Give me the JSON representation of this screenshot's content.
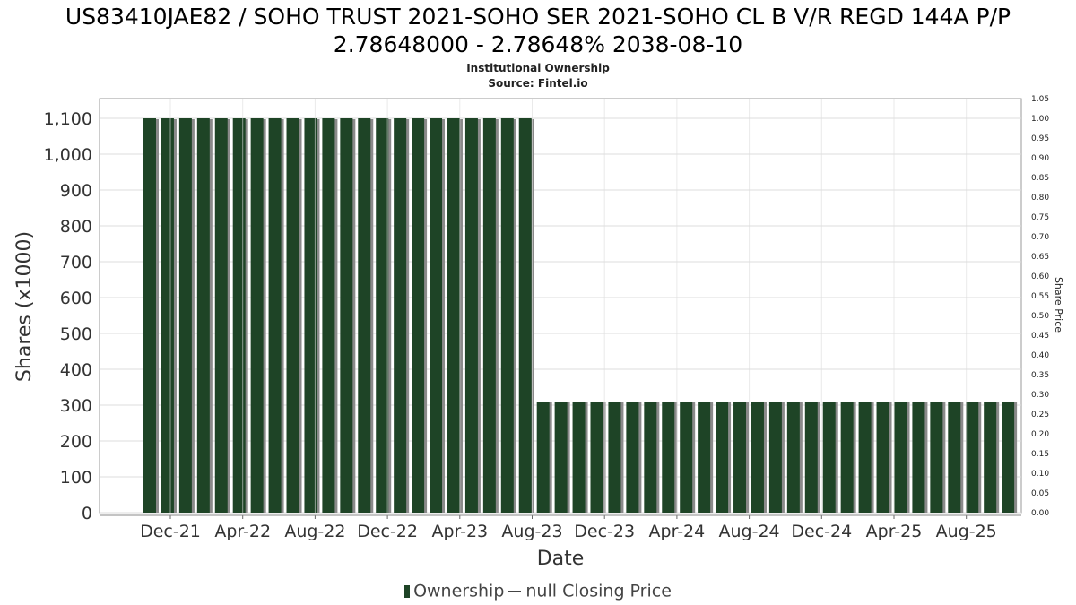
{
  "header": {
    "title_line1": "US83410JAE82 / SOHO TRUST 2021-SOHO SER 2021-SOHO CL B V/R REGD 144A P/P",
    "title_line2": "2.78648000 - 2.78648% 2038-08-10",
    "subtitle": "Institutional Ownership",
    "source": "Source: Fintel.io"
  },
  "legend": {
    "ownership": "Ownership",
    "price": "null Closing Price"
  },
  "colors": {
    "bar": "#1e4426",
    "bar_shadow": "#8a8a8a",
    "grid": "#dddddd",
    "axis_text": "#333333"
  },
  "chart_data": {
    "type": "bar",
    "title": "US83410JAE82 / SOHO TRUST 2021-SOHO SER 2021-SOHO CL B V/R REGD 144A P/P 2.78648000 - 2.78648% 2038-08-10",
    "subtitle": "Institutional Ownership",
    "xlabel": "Date",
    "ylabel": "Shares (x1000)",
    "y2label": "Share Price",
    "x_ticks": [
      "Dec-21",
      "Apr-22",
      "Aug-22",
      "Dec-22",
      "Apr-23",
      "Aug-23",
      "Dec-23",
      "Apr-24",
      "Aug-24",
      "Dec-24",
      "Apr-25",
      "Aug-25"
    ],
    "y_ticks": [
      "0",
      "100",
      "200",
      "300",
      "400",
      "500",
      "600",
      "700",
      "800",
      "900",
      "1,000",
      "1,100"
    ],
    "y2_ticks": [
      "0.00",
      "0.05",
      "0.10",
      "0.15",
      "0.20",
      "0.25",
      "0.30",
      "0.35",
      "0.40",
      "0.45",
      "0.50",
      "0.55",
      "0.60",
      "0.65",
      "0.70",
      "0.75",
      "0.80",
      "0.85",
      "0.90",
      "0.95",
      "1.00",
      "1.05"
    ],
    "ylim": [
      0,
      1150
    ],
    "y2lim": [
      0,
      1.05
    ],
    "grid": true,
    "legend_position": "bottom",
    "series": [
      {
        "name": "Ownership",
        "values": [
          1100,
          1100,
          1100,
          1100,
          1100,
          1100,
          1100,
          1100,
          1100,
          1100,
          1100,
          1100,
          1100,
          1100,
          1100,
          1100,
          1100,
          1100,
          1100,
          1100,
          1100,
          1100,
          310,
          310,
          310,
          310,
          310,
          310,
          310,
          310,
          310,
          310,
          310,
          310,
          310,
          310,
          310,
          310,
          310,
          310,
          310,
          310,
          310,
          310,
          310,
          310,
          310,
          310,
          310
        ]
      }
    ]
  }
}
